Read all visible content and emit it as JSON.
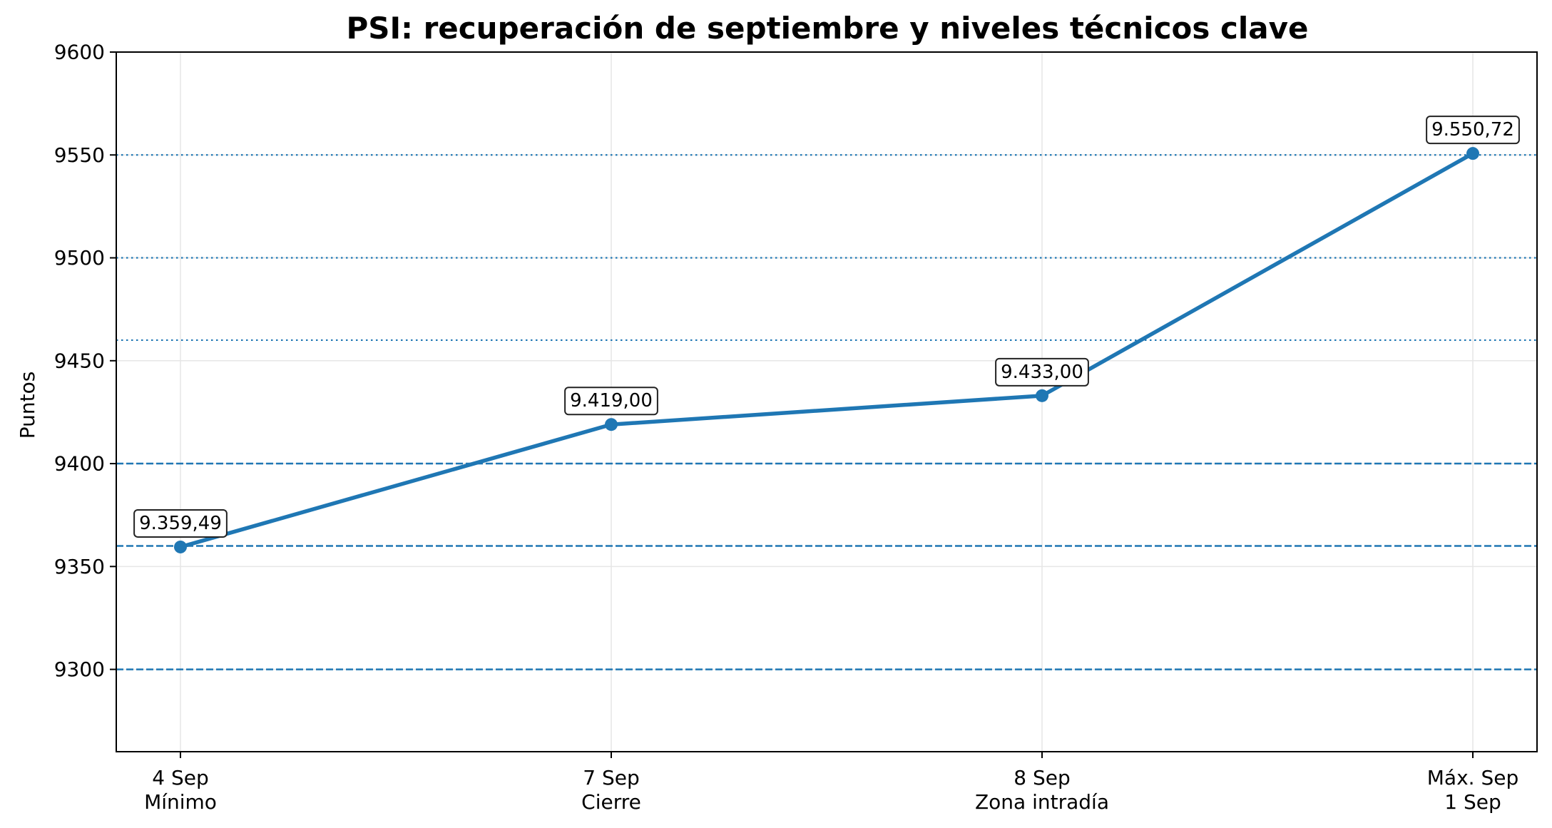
{
  "chart_data": {
    "type": "line",
    "title": "PSI: recuperación de septiembre y niveles técnicos clave",
    "xlabel": "",
    "ylabel": "Puntos",
    "ylim": [
      9260,
      9600
    ],
    "yticks": [
      9300,
      9350,
      9400,
      9450,
      9500,
      9550,
      9600
    ],
    "grid": true,
    "categories": [
      [
        "4 Sep",
        "Mínimo"
      ],
      [
        "7 Sep",
        "Cierre"
      ],
      [
        "8 Sep",
        "Zona intradía"
      ],
      [
        "Máx. Sep",
        "1 Sep"
      ]
    ],
    "series": [
      {
        "values": [
          9359.49,
          9419.0,
          9433.0,
          9550.72
        ],
        "labels": [
          "9.359,49",
          "9.419,00",
          "9.433,00",
          "9.550,72"
        ],
        "color": "#1f77b4"
      }
    ],
    "reference_lines": [
      {
        "value": 9300,
        "style": "dashed"
      },
      {
        "value": 9360,
        "style": "dashed"
      },
      {
        "value": 9400,
        "style": "dashed"
      },
      {
        "value": 9460,
        "style": "dotted"
      },
      {
        "value": 9500,
        "style": "dotted"
      },
      {
        "value": 9550,
        "style": "dotted"
      }
    ],
    "colors": {
      "line": "#1f77b4",
      "grid": "#e6e6e6",
      "axis": "#000000"
    }
  }
}
